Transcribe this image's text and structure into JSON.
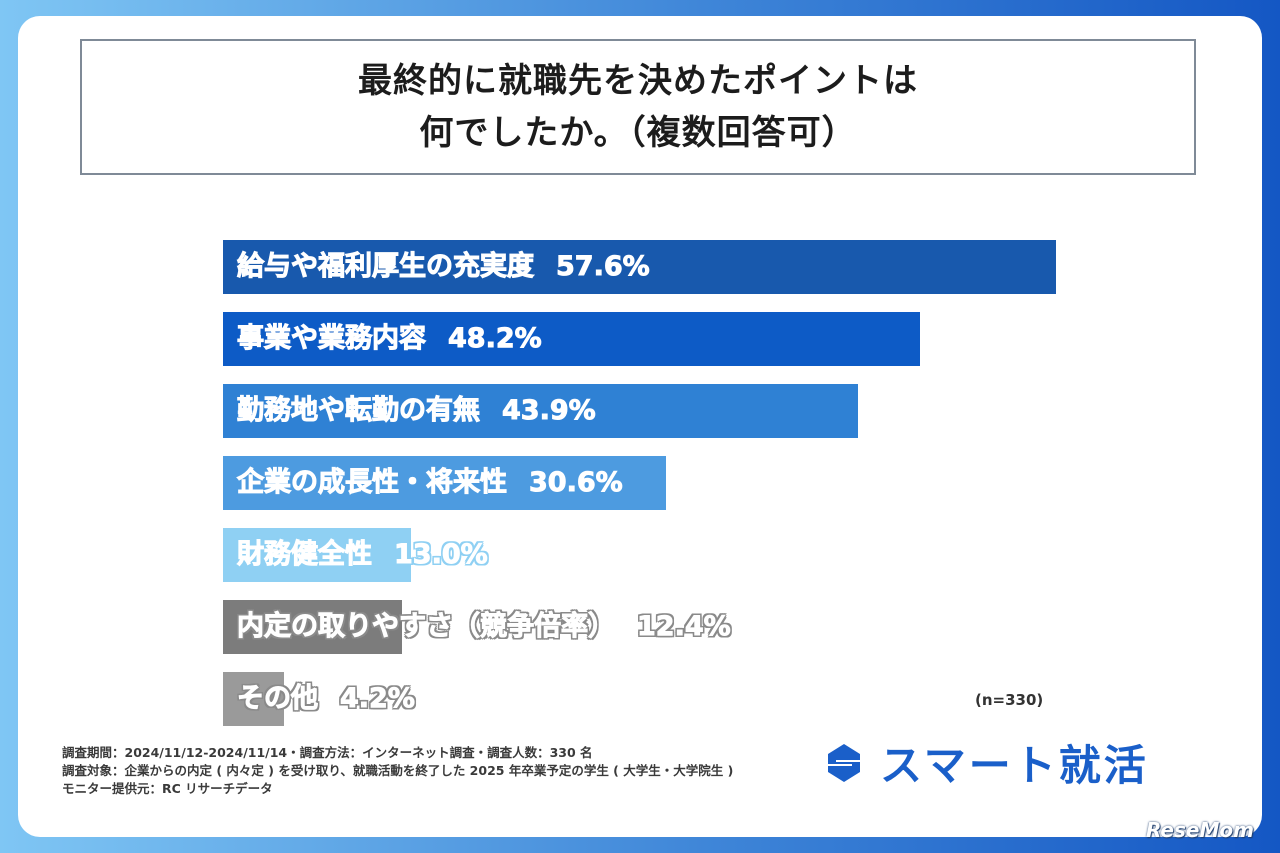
{
  "header": {
    "title_line1": "最終的に就職先を決めたポイントは",
    "title_line2": "何でしたか。（複数回答可）"
  },
  "chart_data": {
    "type": "bar",
    "orientation": "horizontal",
    "categories": [
      "給与や福利厚生の充実度",
      "事業や業務内容",
      "勤務地や転勤の有無",
      "企業の成長性・将来性",
      "財務健全性",
      "内定の取りやすさ（競争倍率）",
      "その他"
    ],
    "values": [
      57.6,
      48.2,
      43.9,
      30.6,
      13.0,
      12.4,
      4.2
    ],
    "value_labels": [
      "57.6%",
      "48.2%",
      "43.9%",
      "30.6%",
      "13.0%",
      "12.4%",
      "4.2%"
    ],
    "colors": [
      "#1859ad",
      "#0d5bc6",
      "#2f81d4",
      "#4d9be0",
      "#8fd0f3",
      "#7c7c7c",
      "#9a9a9a"
    ],
    "xlim": [
      0,
      60
    ],
    "title": "最終的に就職先を決めたポイントは何でしたか。（複数回答可）",
    "sample_size": "(n=330)"
  },
  "footer": {
    "note1": "調査期間：2024/11/12-2024/11/14・調査方法：インターネット調査・調査人数：330 名",
    "note2": "調査対象：企業からの内定 ( 内々定 ) を受け取り、就職活動を終了した 2025 年卒業予定の学生 ( 大学生・大学院生 )",
    "note3": "モニター提供元：RC リサーチデータ",
    "brand": "スマート就活",
    "watermark": "ReseMom"
  }
}
